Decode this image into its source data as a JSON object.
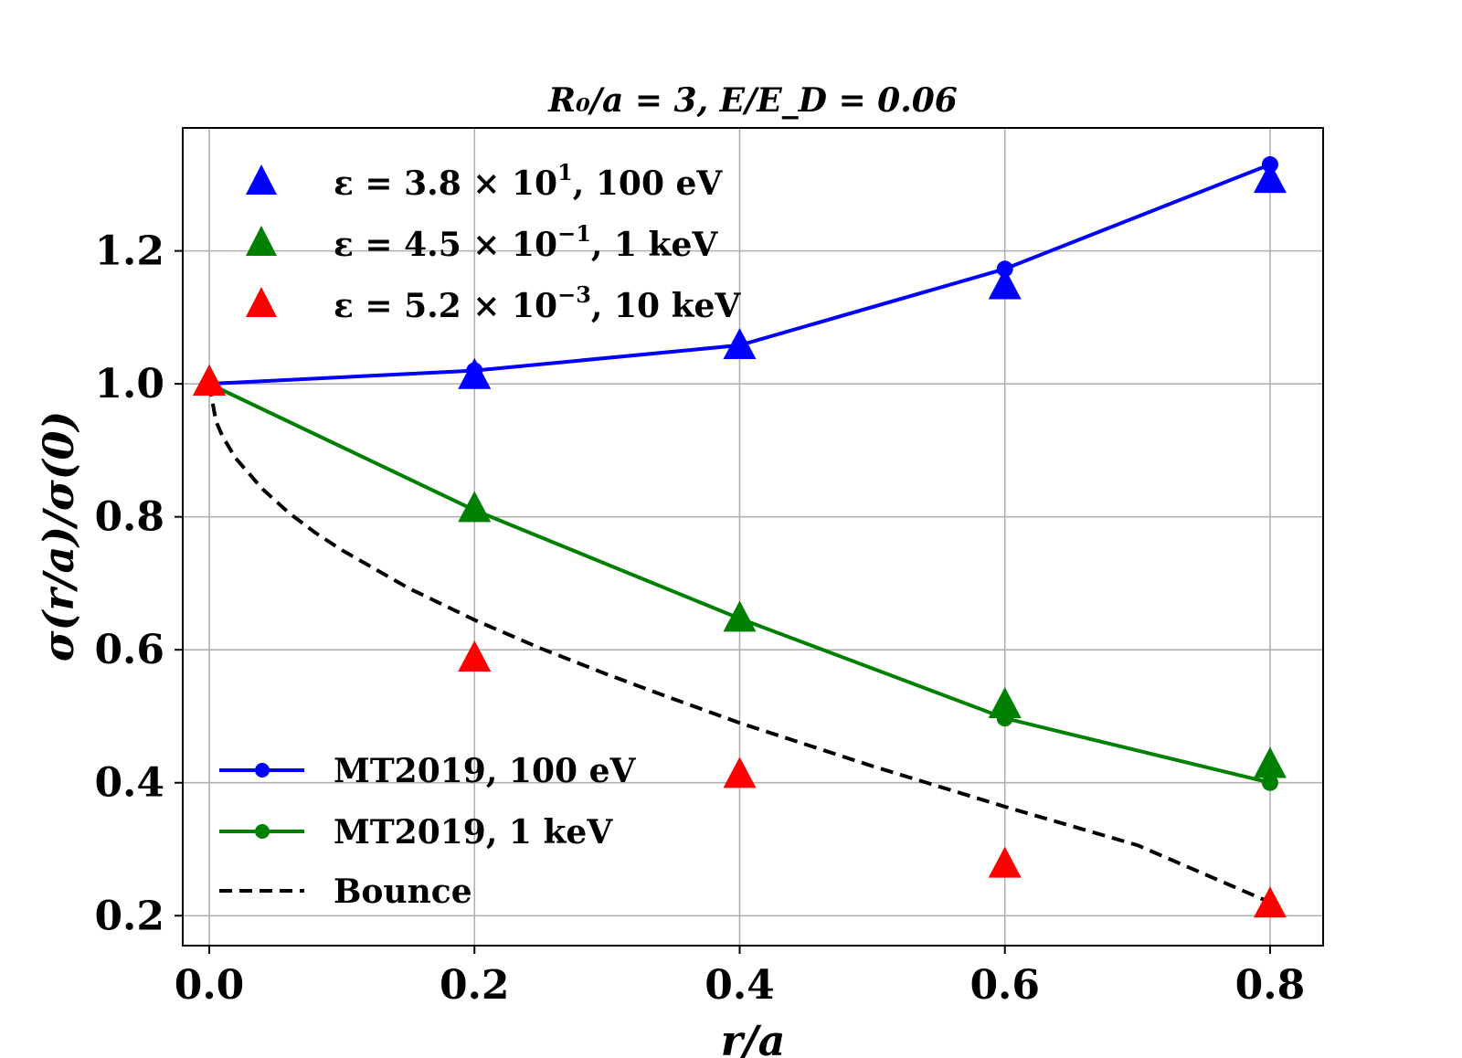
{
  "chart_data": {
    "type": "line",
    "title": "R₀/a = 3, E/E_D = 0.06",
    "xlabel": "r/a",
    "ylabel": "σ(r/a)/σ(0)",
    "xlim": [
      -0.02,
      0.84
    ],
    "ylim": [
      0.155,
      1.385
    ],
    "grid": true,
    "xticks": [
      0.0,
      0.2,
      0.4,
      0.6,
      0.8
    ],
    "xtick_labels": [
      "0.0",
      "0.2",
      "0.4",
      "0.6",
      "0.8"
    ],
    "yticks": [
      0.2,
      0.4,
      0.6,
      0.8,
      1.0,
      1.2
    ],
    "ytick_labels": [
      "0.2",
      "0.4",
      "0.6",
      "0.8",
      "1.0",
      "1.2"
    ],
    "x": [
      0.0,
      0.2,
      0.4,
      0.6,
      0.8
    ],
    "series": [
      {
        "name": "ε = 3.8 × 10¹, 100 eV",
        "kind": "markers",
        "color": "#0000ff",
        "values": [
          1.0,
          1.01,
          1.055,
          1.145,
          1.305
        ]
      },
      {
        "name": "ε = 4.5 × 10⁻¹, 1 keV",
        "kind": "markers",
        "color": "#008000",
        "values": [
          1.0,
          0.81,
          0.645,
          0.515,
          0.425
        ]
      },
      {
        "name": "ε = 5.2 × 10⁻³, 10 keV",
        "kind": "markers",
        "color": "#ff0000",
        "values": [
          1.0,
          0.585,
          0.41,
          0.275,
          0.215
        ]
      },
      {
        "name": "MT2019, 100 eV",
        "kind": "line-dots",
        "color": "#0000ff",
        "values": [
          1.0,
          1.02,
          1.058,
          1.173,
          1.33
        ]
      },
      {
        "name": "MT2019, 1 keV",
        "kind": "line-dots",
        "color": "#008000",
        "values": [
          1.0,
          0.81,
          0.647,
          0.497,
          0.4
        ]
      },
      {
        "name": "Bounce",
        "kind": "dashed",
        "color": "#000000",
        "x": [
          0.0,
          0.005,
          0.01,
          0.02,
          0.04,
          0.06,
          0.08,
          0.1,
          0.15,
          0.2,
          0.25,
          0.3,
          0.35,
          0.4,
          0.5,
          0.6,
          0.7,
          0.8
        ],
        "values": [
          1.0,
          0.944,
          0.921,
          0.888,
          0.842,
          0.806,
          0.776,
          0.75,
          0.693,
          0.645,
          0.602,
          0.563,
          0.526,
          0.49,
          0.425,
          0.364,
          0.306,
          0.22
        ]
      }
    ]
  },
  "legend_top": {
    "entries": [
      {
        "eps_prefix": "ε = 3.8 × 10",
        "exp": "1",
        "suffix": ", 100 eV",
        "color": "#0000ff"
      },
      {
        "eps_prefix": "ε = 4.5 × 10",
        "exp": "−1",
        "suffix": ", 1 keV",
        "color": "#008000"
      },
      {
        "eps_prefix": "ε = 5.2 × 10",
        "exp": "−3",
        "suffix": ", 10 keV",
        "color": "#ff0000"
      }
    ]
  },
  "legend_bottom": {
    "entries": [
      {
        "label": "MT2019, 100 eV",
        "color": "#0000ff"
      },
      {
        "label": "MT2019, 1 keV",
        "color": "#008000"
      },
      {
        "label": "Bounce",
        "color": "#000000"
      }
    ]
  }
}
